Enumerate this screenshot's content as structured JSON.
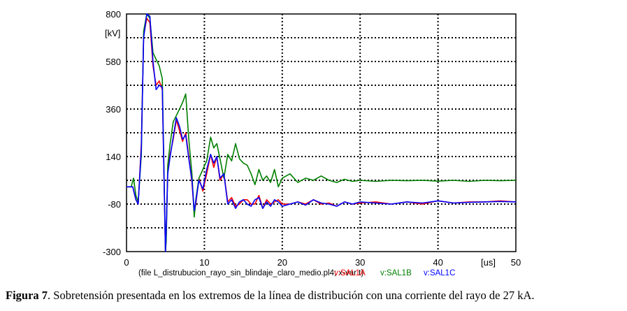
{
  "chart_data": {
    "type": "line",
    "ylabel": "[kV]",
    "xunit": "[us]",
    "xlim": [
      0,
      50
    ],
    "ylim": [
      -300,
      800
    ],
    "xticks": [
      0,
      10,
      20,
      30,
      40,
      50
    ],
    "yticks": [
      -300,
      -80,
      140,
      360,
      580,
      800
    ],
    "grid": true,
    "file_label": "(file L_distrubucion_rayo_sin_blindaje_claro_medio.pl4; x-var t)",
    "series": [
      {
        "name": "v:SAL1A",
        "color": "#ff0000",
        "x": [
          0,
          0.8,
          1.2,
          1.5,
          1.9,
          2.2,
          2.6,
          3.0,
          3.4,
          3.8,
          4.2,
          4.6,
          5.0,
          5.1,
          5.3,
          5.6,
          6.0,
          6.4,
          6.8,
          7.2,
          7.6,
          8.0,
          8.4,
          8.7,
          8.9,
          9.3,
          9.8,
          10.3,
          10.8,
          11.2,
          11.6,
          12.0,
          12.5,
          13.0,
          13.5,
          14.0,
          14.5,
          15.0,
          15.5,
          16.0,
          16.5,
          17.0,
          17.5,
          18.0,
          18.5,
          19.0,
          19.5,
          20.0,
          21.0,
          22.0,
          23.0,
          24.0,
          25.0,
          26.0,
          27.0,
          28.0,
          29.0,
          30.0,
          32.0,
          34.0,
          36.0,
          38.0,
          40.0,
          42.0,
          44.0,
          46.0,
          48.0,
          50.0
        ],
        "y": [
          0,
          0,
          -60,
          -80,
          200,
          700,
          780,
          760,
          560,
          470,
          490,
          450,
          -300,
          -220,
          80,
          150,
          220,
          310,
          260,
          210,
          250,
          140,
          20,
          -120,
          -80,
          40,
          -20,
          60,
          150,
          90,
          140,
          30,
          60,
          -70,
          -50,
          -90,
          -80,
          -60,
          -60,
          -80,
          -80,
          -40,
          -100,
          -60,
          -80,
          -70,
          -60,
          -80,
          -80,
          -70,
          -80,
          -60,
          -80,
          -75,
          -90,
          -70,
          -80,
          -75,
          -70,
          -80,
          -70,
          -80,
          -65,
          -75,
          -70,
          -70,
          -65,
          -70
        ]
      },
      {
        "name": "v:SAL1B",
        "color": "#008000",
        "x": [
          0,
          0.6,
          0.9,
          1.2,
          1.5,
          1.9,
          2.2,
          2.6,
          3.0,
          3.4,
          3.8,
          4.2,
          4.6,
          5.0,
          5.1,
          5.3,
          5.6,
          6.0,
          6.4,
          6.8,
          7.2,
          7.6,
          8.0,
          8.4,
          8.7,
          8.9,
          9.3,
          9.8,
          10.3,
          10.8,
          11.2,
          11.6,
          12.0,
          12.5,
          13.0,
          13.5,
          14.0,
          14.5,
          15.0,
          15.5,
          16.0,
          16.5,
          17.0,
          17.5,
          18.0,
          18.5,
          19.0,
          19.5,
          20.0,
          21.0,
          22.0,
          23.0,
          24.0,
          25.0,
          26.0,
          27.0,
          28.0,
          29.0,
          30.0,
          32.0,
          34.0,
          36.0,
          38.0,
          40.0,
          42.0,
          44.0,
          46.0,
          48.0,
          50.0
        ],
        "y": [
          0,
          0,
          40,
          -40,
          -70,
          150,
          720,
          800,
          780,
          620,
          590,
          560,
          500,
          -300,
          -250,
          100,
          200,
          300,
          330,
          360,
          390,
          430,
          220,
          60,
          -140,
          -60,
          40,
          80,
          120,
          230,
          180,
          200,
          130,
          40,
          150,
          120,
          200,
          130,
          110,
          100,
          60,
          10,
          80,
          30,
          50,
          20,
          80,
          0,
          40,
          60,
          20,
          40,
          30,
          50,
          30,
          20,
          35,
          25,
          30,
          25,
          30,
          28,
          30,
          26,
          30,
          25,
          30,
          28,
          30
        ]
      },
      {
        "name": "v:SAL1C",
        "color": "#0000ff",
        "x": [
          0,
          0.8,
          1.2,
          1.5,
          1.9,
          2.2,
          2.6,
          3.0,
          3.4,
          3.8,
          4.2,
          4.6,
          5.0,
          5.1,
          5.3,
          5.6,
          6.0,
          6.4,
          6.8,
          7.2,
          7.6,
          8.0,
          8.4,
          8.7,
          8.9,
          9.3,
          9.8,
          10.3,
          10.8,
          11.2,
          11.6,
          12.0,
          12.5,
          13.0,
          13.5,
          14.0,
          14.5,
          15.0,
          15.5,
          16.0,
          16.5,
          17.0,
          17.5,
          18.0,
          18.5,
          19.0,
          19.5,
          20.0,
          21.0,
          22.0,
          23.0,
          24.0,
          25.0,
          26.0,
          27.0,
          28.0,
          29.0,
          30.0,
          32.0,
          34.0,
          36.0,
          38.0,
          40.0,
          42.0,
          44.0,
          46.0,
          48.0,
          50.0
        ],
        "y": [
          0,
          0,
          -60,
          -80,
          180,
          690,
          800,
          790,
          580,
          450,
          470,
          460,
          -300,
          -200,
          60,
          140,
          230,
          320,
          280,
          220,
          240,
          130,
          30,
          -110,
          -70,
          30,
          -10,
          80,
          150,
          110,
          140,
          40,
          60,
          -80,
          -60,
          -100,
          -70,
          -60,
          -80,
          -90,
          -60,
          -50,
          -100,
          -70,
          -90,
          -60,
          -70,
          -90,
          -80,
          -70,
          -85,
          -60,
          -75,
          -80,
          -90,
          -70,
          -80,
          -70,
          -75,
          -80,
          -70,
          -75,
          -65,
          -75,
          -72,
          -70,
          -68,
          -70
        ]
      }
    ]
  },
  "caption": {
    "label": "Figura 7",
    "text": ". Sobretensión presentada en los extremos de la línea de distribución con una corriente del rayo de 27 kA."
  }
}
